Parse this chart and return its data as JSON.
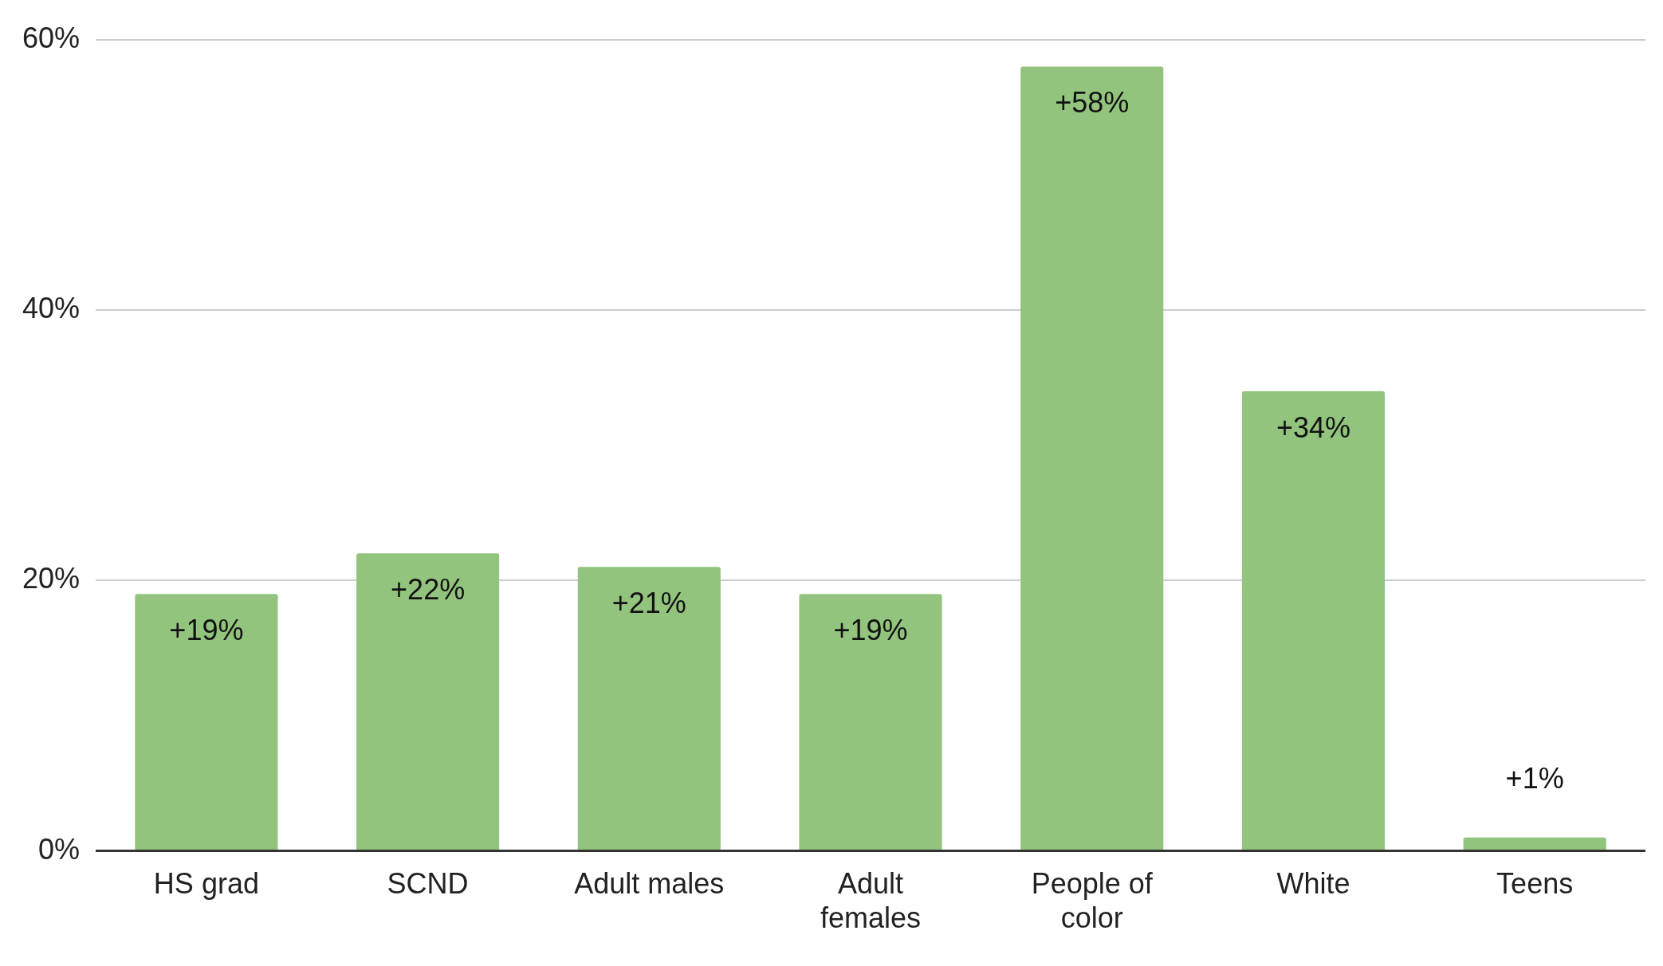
{
  "chart_data": {
    "type": "bar",
    "categories": [
      "HS grad",
      "SCND",
      "Adult males",
      "Adult females",
      "People of color",
      "White",
      "Teens"
    ],
    "values": [
      19,
      22,
      21,
      19,
      58,
      34,
      1
    ],
    "value_labels": [
      "+19%",
      "+22%",
      "+21%",
      "+19%",
      "+58%",
      "+34%",
      "+1%"
    ],
    "color": "#93c47d",
    "ylim": [
      0,
      60
    ],
    "yticks": [
      {
        "value": 0,
        "label": "0%"
      },
      {
        "value": 20,
        "label": "20%"
      },
      {
        "value": 40,
        "label": "40%"
      },
      {
        "value": 60,
        "label": "60%"
      }
    ],
    "grid": "y",
    "legend": false
  }
}
